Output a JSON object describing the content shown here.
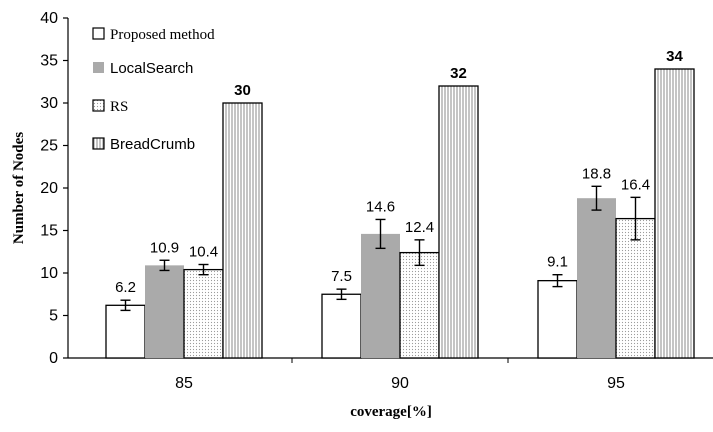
{
  "chart_data": {
    "type": "bar",
    "categories": [
      "85",
      "90",
      "95"
    ],
    "xlabel": "coverage[%]",
    "ylabel": "Number of Nodes",
    "ylim": [
      0,
      40
    ],
    "yticks": [
      "0",
      "5",
      "10",
      "15",
      "20",
      "25",
      "30",
      "35",
      "40"
    ],
    "grid": false,
    "legend_position": "top-left",
    "series": [
      {
        "name": "Proposed method",
        "values": [
          6.2,
          7.5,
          9.1
        ],
        "labels": [
          "6.2",
          "7.5",
          "9.1"
        ],
        "errors": [
          0.6,
          0.6,
          0.7
        ],
        "fill": "#ffffff",
        "pattern": "none"
      },
      {
        "name": "LocalSearch",
        "values": [
          10.9,
          14.6,
          18.8
        ],
        "labels": [
          "10.9",
          "14.6",
          "18.8"
        ],
        "errors": [
          0.6,
          1.7,
          1.4
        ],
        "fill": "#aaaaaa",
        "pattern": "none"
      },
      {
        "name": "RS",
        "values": [
          10.4,
          12.4,
          16.4
        ],
        "labels": [
          "10.4",
          "12.4",
          "16.4"
        ],
        "errors": [
          0.6,
          1.5,
          2.5
        ],
        "fill": "#ffffff",
        "pattern": "dots"
      },
      {
        "name": "BreadCrumb",
        "values": [
          30,
          32,
          34
        ],
        "labels": [
          "30",
          "32",
          "34"
        ],
        "errors": [
          0,
          0,
          0
        ],
        "fill": "#ffffff",
        "pattern": "vertical-lines"
      }
    ]
  }
}
